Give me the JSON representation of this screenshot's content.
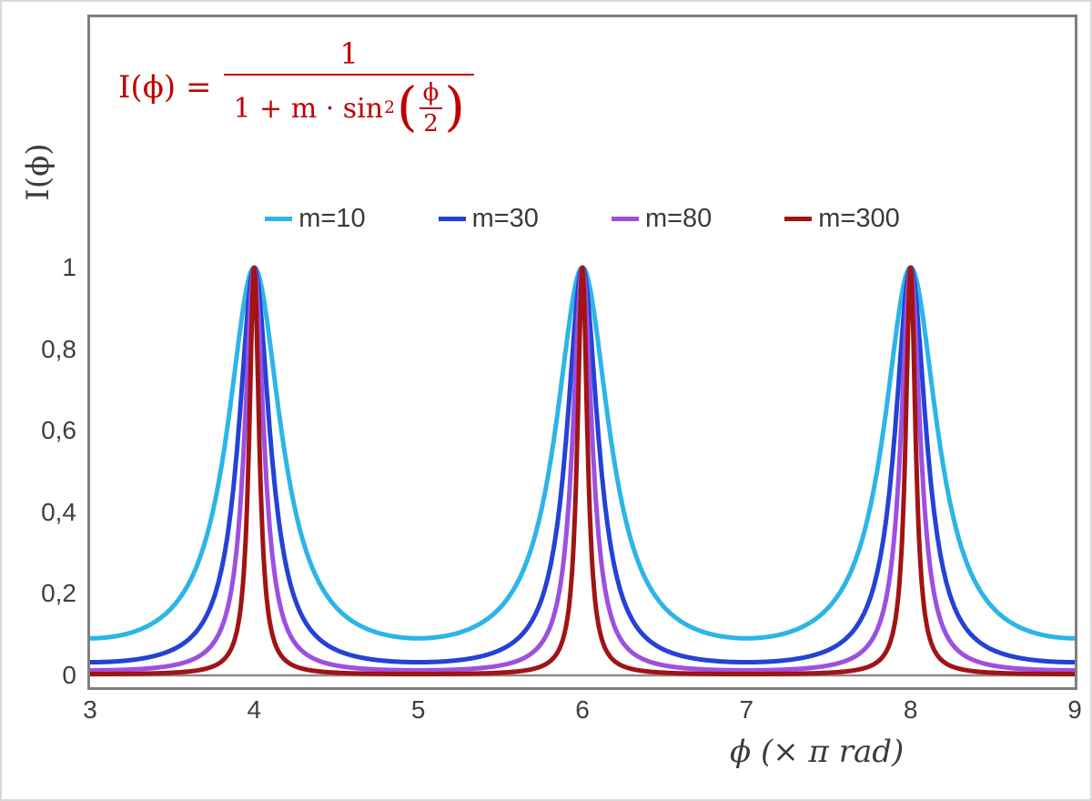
{
  "figure": {
    "y_axis_title": "I(ϕ)",
    "x_axis_title": "ϕ  (× π rad)"
  },
  "formula": {
    "lhs": "I(ϕ) =",
    "numerator": "1",
    "den_prefix": "1 + m · sin",
    "den_sup": "2",
    "lparen": "(",
    "rparen": ")",
    "inner_num": "ϕ",
    "inner_den": "2",
    "color": "#c00000"
  },
  "chart_data": {
    "type": "line",
    "title": "",
    "xlabel": "ϕ (× π rad)",
    "ylabel": "I(ϕ)",
    "xlim": [
      3,
      9
    ],
    "ylim": [
      0,
      1
    ],
    "grid": false,
    "legend_position": "top-center",
    "function": "I(x) = 1 / (1 + m * sin^2(pi*x/2)) with x = phi in units of pi rad",
    "peaks_at_x": [
      4,
      6,
      8
    ],
    "peak_value": 1,
    "x_ticks": [
      {
        "value": 3,
        "label": "3"
      },
      {
        "value": 4,
        "label": "4"
      },
      {
        "value": 5,
        "label": "5"
      },
      {
        "value": 6,
        "label": "6"
      },
      {
        "value": 7,
        "label": "7"
      },
      {
        "value": 8,
        "label": "8"
      },
      {
        "value": 9,
        "label": "9"
      }
    ],
    "y_ticks": [
      {
        "value": 0,
        "label": "0"
      },
      {
        "value": 0.2,
        "label": "0,2"
      },
      {
        "value": 0.4,
        "label": "0,4"
      },
      {
        "value": 0.6,
        "label": "0,6"
      },
      {
        "value": 0.8,
        "label": "0,8"
      },
      {
        "value": 1,
        "label": "1"
      }
    ],
    "series": [
      {
        "name": "m=10",
        "m": 10,
        "color": "#2bb5e8",
        "min_value": 0.0909
      },
      {
        "name": "m=30",
        "m": 30,
        "color": "#2442d6",
        "min_value": 0.0323
      },
      {
        "name": "m=80",
        "m": 80,
        "color": "#9d50e0",
        "min_value": 0.0123
      },
      {
        "name": "m=300",
        "m": 300,
        "color": "#a01414",
        "min_value": 0.0033
      }
    ],
    "sampling": {
      "x_start": 3,
      "x_end": 9,
      "points_per_series": 1501
    },
    "axis_line_color": "#8a8a8a",
    "frame_color": "#7f7f7f"
  }
}
